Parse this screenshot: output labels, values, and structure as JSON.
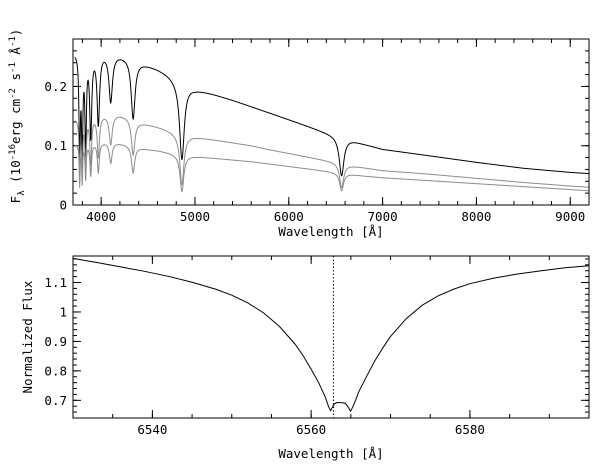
{
  "chart_data": [
    {
      "type": "line",
      "xlabel": "Wavelength [Å]",
      "ylabel": {
        "base": "F",
        "sub": "λ",
        "pre": " (10",
        "exp1": "-16",
        "mid1": "erg cm",
        "exp2": "-2",
        "mid2": " s",
        "exp3": "-1",
        "mid3": " Å",
        "exp4": "-1",
        "post": ")"
      },
      "xlim": [
        3700,
        9200
      ],
      "ylim": [
        0,
        0.28
      ],
      "xticks": [
        {
          "v": 4000,
          "label": "4000"
        },
        {
          "v": 5000,
          "label": "5000"
        },
        {
          "v": 6000,
          "label": "6000"
        },
        {
          "v": 7000,
          "label": "7000"
        },
        {
          "v": 8000,
          "label": "8000"
        },
        {
          "v": 9000,
          "label": "9000"
        }
      ],
      "yticks": [
        {
          "v": 0,
          "label": "0"
        },
        {
          "v": 0.1,
          "label": "0.1"
        },
        {
          "v": 0.2,
          "label": "0.2"
        }
      ],
      "series": [
        {
          "color": "#000000",
          "continuum": [
            [
              3720,
              0.258
            ],
            [
              3800,
              0.26
            ],
            [
              3900,
              0.26
            ],
            [
              4000,
              0.259
            ],
            [
              4100,
              0.256
            ],
            [
              4200,
              0.253
            ],
            [
              4300,
              0.25
            ],
            [
              4400,
              0.242
            ],
            [
              4500,
              0.236
            ],
            [
              4600,
              0.23
            ],
            [
              4700,
              0.222
            ],
            [
              4800,
              0.212
            ],
            [
              5000,
              0.196
            ],
            [
              5200,
              0.187
            ],
            [
              5400,
              0.177
            ],
            [
              5600,
              0.166
            ],
            [
              5800,
              0.155
            ],
            [
              6000,
              0.144
            ],
            [
              6200,
              0.133
            ],
            [
              6400,
              0.122
            ],
            [
              6500,
              0.117
            ],
            [
              6600,
              0.113
            ],
            [
              6800,
              0.103
            ],
            [
              7000,
              0.094
            ],
            [
              7500,
              0.083
            ],
            [
              8000,
              0.072
            ],
            [
              8500,
              0.062
            ],
            [
              9000,
              0.055
            ],
            [
              9200,
              0.053
            ]
          ],
          "lines": [
            [
              3771,
              0.18,
              8
            ],
            [
              3798,
              0.17,
              8
            ],
            [
              3835,
              0.16,
              9
            ],
            [
              3889,
              0.14,
              13
            ],
            [
              3970,
              0.12,
              16
            ],
            [
              4102,
              0.08,
              22
            ],
            [
              4341,
              0.1,
              25
            ],
            [
              4861,
              0.13,
              30
            ],
            [
              6563,
              0.065,
              30
            ]
          ]
        },
        {
          "color": "#8c8c8c",
          "continuum": [
            [
              3720,
              0.146
            ],
            [
              3800,
              0.148
            ],
            [
              3900,
              0.15
            ],
            [
              4000,
              0.152
            ],
            [
              4100,
              0.153
            ],
            [
              4200,
              0.152
            ],
            [
              4300,
              0.148
            ],
            [
              4400,
              0.14
            ],
            [
              4500,
              0.136
            ],
            [
              4600,
              0.132
            ],
            [
              4700,
              0.127
            ],
            [
              4800,
              0.121
            ],
            [
              5000,
              0.115
            ],
            [
              5200,
              0.11
            ],
            [
              5400,
              0.105
            ],
            [
              5600,
              0.1
            ],
            [
              5800,
              0.093
            ],
            [
              6000,
              0.087
            ],
            [
              6200,
              0.081
            ],
            [
              6400,
              0.075
            ],
            [
              6500,
              0.072
            ],
            [
              6600,
              0.068
            ],
            [
              6800,
              0.063
            ],
            [
              7000,
              0.058
            ],
            [
              7500,
              0.052
            ],
            [
              8000,
              0.045
            ],
            [
              8500,
              0.038
            ],
            [
              9000,
              0.032
            ],
            [
              9200,
              0.03
            ]
          ],
          "lines": [
            [
              3771,
              0.1,
              7
            ],
            [
              3798,
              0.095,
              7
            ],
            [
              3835,
              0.09,
              8
            ],
            [
              3889,
              0.08,
              11
            ],
            [
              3970,
              0.07,
              14
            ],
            [
              4102,
              0.05,
              19
            ],
            [
              4341,
              0.06,
              22
            ],
            [
              4861,
              0.085,
              26
            ],
            [
              6563,
              0.04,
              26
            ]
          ]
        },
        {
          "color": "#8c8c8c",
          "continuum": [
            [
              3720,
              0.103
            ],
            [
              3800,
              0.104
            ],
            [
              3900,
              0.105
            ],
            [
              4000,
              0.106
            ],
            [
              4100,
              0.106
            ],
            [
              4200,
              0.104
            ],
            [
              4300,
              0.101
            ],
            [
              4400,
              0.097
            ],
            [
              4500,
              0.094
            ],
            [
              4600,
              0.092
            ],
            [
              4700,
              0.089
            ],
            [
              4800,
              0.086
            ],
            [
              5000,
              0.082
            ],
            [
              5200,
              0.079
            ],
            [
              5400,
              0.076
            ],
            [
              5600,
              0.073
            ],
            [
              5800,
              0.069
            ],
            [
              6000,
              0.065
            ],
            [
              6200,
              0.061
            ],
            [
              6400,
              0.057
            ],
            [
              6500,
              0.055
            ],
            [
              6600,
              0.053
            ],
            [
              6800,
              0.049
            ],
            [
              7000,
              0.046
            ],
            [
              7500,
              0.041
            ],
            [
              8000,
              0.036
            ],
            [
              8500,
              0.031
            ],
            [
              9000,
              0.026
            ],
            [
              9200,
              0.024
            ]
          ],
          "lines": [
            [
              3771,
              0.07,
              6
            ],
            [
              3798,
              0.065,
              6
            ],
            [
              3835,
              0.06,
              7
            ],
            [
              3889,
              0.055,
              10
            ],
            [
              3970,
              0.05,
              12
            ],
            [
              4102,
              0.035,
              17
            ],
            [
              4341,
              0.045,
              20
            ],
            [
              4861,
              0.062,
              24
            ],
            [
              6563,
              0.03,
              24
            ]
          ]
        }
      ]
    },
    {
      "type": "line",
      "xlabel": "Wavelength [Å]",
      "ylabel": "Normalized Flux",
      "xlim": [
        6530,
        6595
      ],
      "ylim": [
        0.64,
        1.19
      ],
      "xticks": [
        {
          "v": 6540,
          "label": "6540"
        },
        {
          "v": 6560,
          "label": "6560"
        },
        {
          "v": 6580,
          "label": "6580"
        }
      ],
      "yticks": [
        {
          "v": 0.7,
          "label": "0.7"
        },
        {
          "v": 0.8,
          "label": "0.8"
        },
        {
          "v": 0.9,
          "label": "0.9"
        },
        {
          "v": 1.0,
          "label": "1"
        },
        {
          "v": 1.1,
          "label": "1.1"
        }
      ],
      "vline": 6562.8,
      "series": [
        {
          "color": "#000000",
          "points": [
            [
              6530,
              1.182
            ],
            [
              6533,
              1.168
            ],
            [
              6536,
              1.153
            ],
            [
              6539,
              1.138
            ],
            [
              6542,
              1.121
            ],
            [
              6545,
              1.101
            ],
            [
              6548,
              1.077
            ],
            [
              6550,
              1.057
            ],
            [
              6552,
              1.031
            ],
            [
              6554,
              0.997
            ],
            [
              6556,
              0.951
            ],
            [
              6558,
              0.89
            ],
            [
              6559,
              0.851
            ],
            [
              6560,
              0.806
            ],
            [
              6561,
              0.757
            ],
            [
              6561.8,
              0.71
            ],
            [
              6562.2,
              0.678
            ],
            [
              6562.45,
              0.665
            ],
            [
              6562.6,
              0.672
            ],
            [
              6562.85,
              0.686
            ],
            [
              6563.2,
              0.692
            ],
            [
              6563.8,
              0.692
            ],
            [
              6564.3,
              0.69
            ],
            [
              6564.7,
              0.676
            ],
            [
              6564.95,
              0.663
            ],
            [
              6565.2,
              0.675
            ],
            [
              6565.6,
              0.7
            ],
            [
              6566,
              0.729
            ],
            [
              6567,
              0.782
            ],
            [
              6568,
              0.833
            ],
            [
              6569,
              0.877
            ],
            [
              6570,
              0.917
            ],
            [
              6572,
              0.978
            ],
            [
              6574,
              1.023
            ],
            [
              6576,
              1.055
            ],
            [
              6578,
              1.078
            ],
            [
              6580,
              1.096
            ],
            [
              6583,
              1.115
            ],
            [
              6586,
              1.129
            ],
            [
              6589,
              1.14
            ],
            [
              6592,
              1.15
            ],
            [
              6595,
              1.157
            ]
          ]
        }
      ]
    }
  ]
}
